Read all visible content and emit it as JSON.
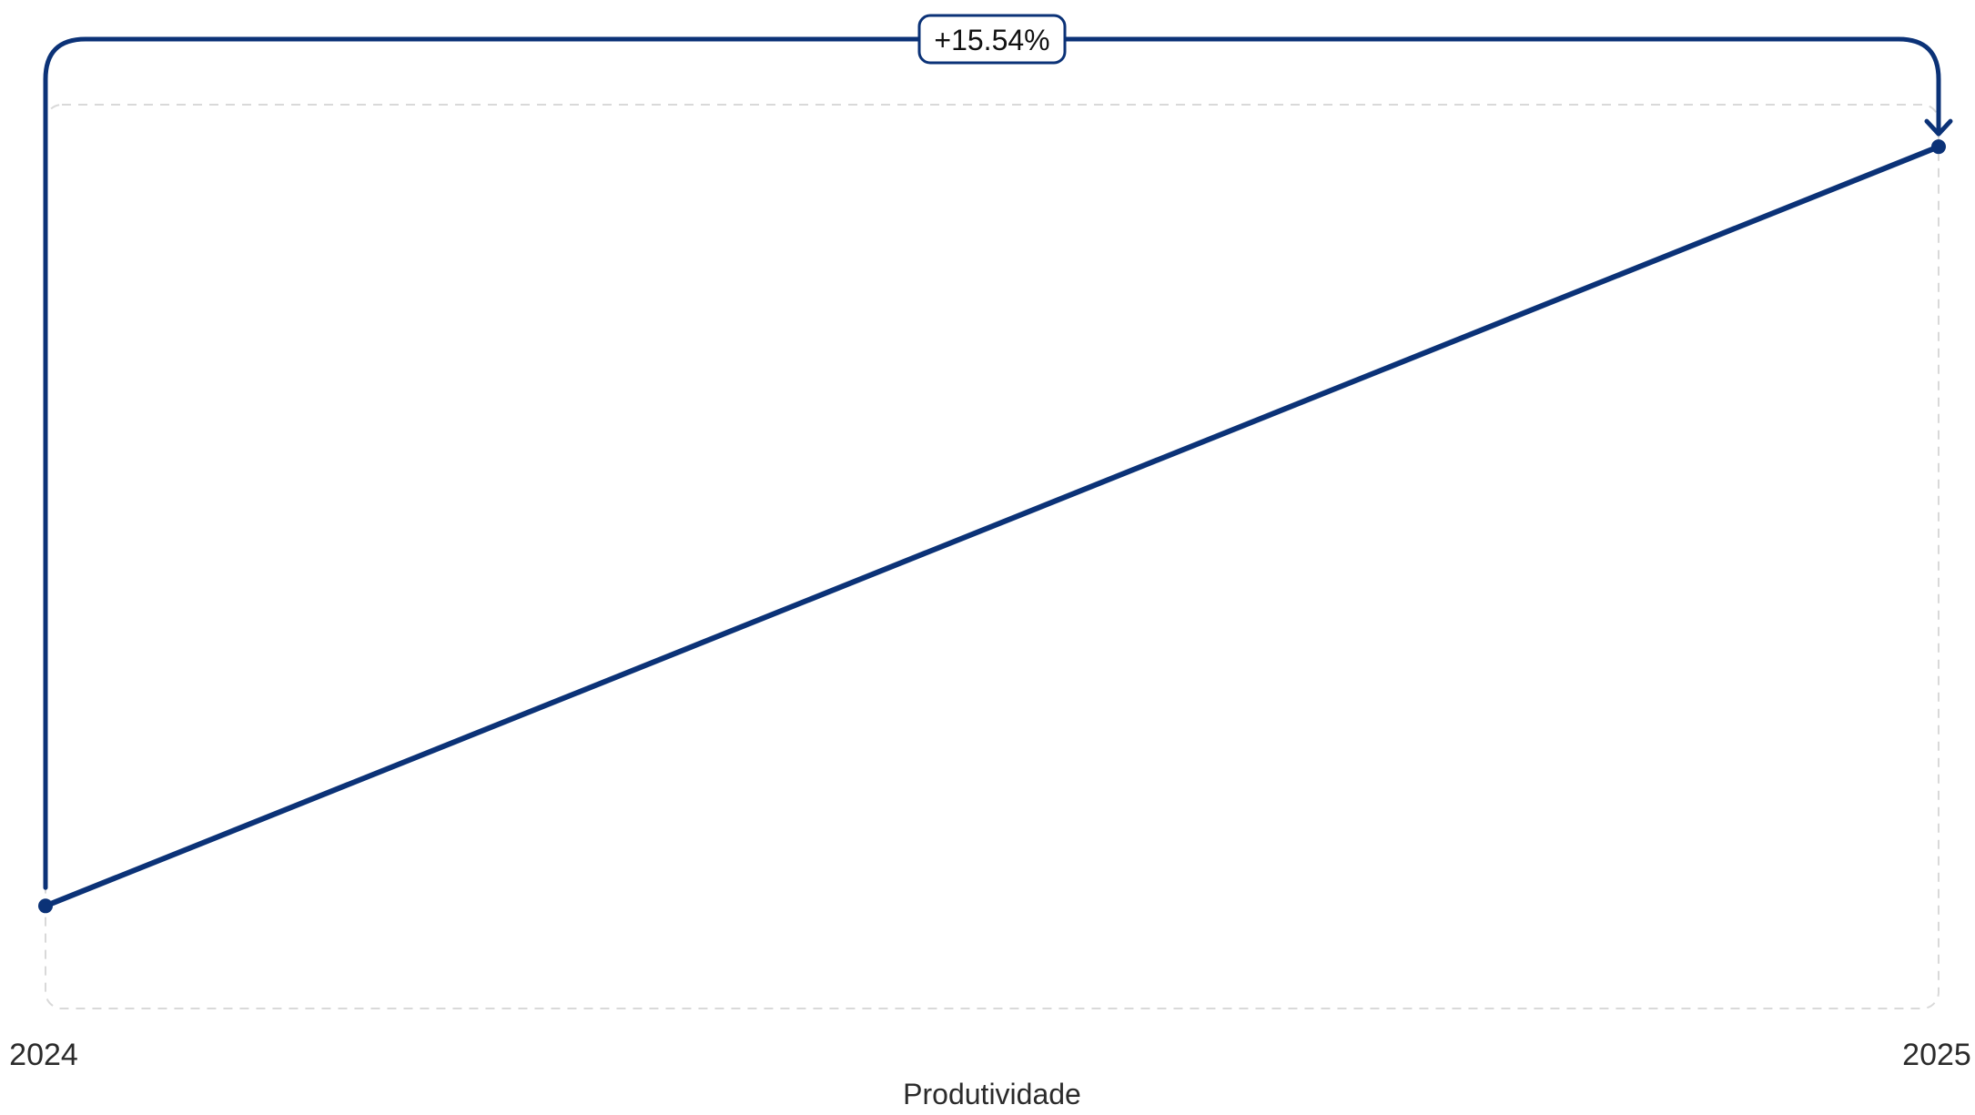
{
  "chart_data": {
    "type": "line",
    "categories": [
      "2024",
      "2025"
    ],
    "series": [
      {
        "values": [
          100,
          115.54
        ]
      }
    ],
    "xlabel": "Produtividade",
    "ylabel": "",
    "ylim": [
      97.9,
      116.4
    ],
    "grid": false,
    "annotation": {
      "label": "+15.54%",
      "from": "2024",
      "to": "2025"
    },
    "colors": {
      "line": "#0b3277",
      "frame": "#d9d9d9",
      "badge_border": "#0b3277",
      "text": "#2b2b2b"
    }
  }
}
